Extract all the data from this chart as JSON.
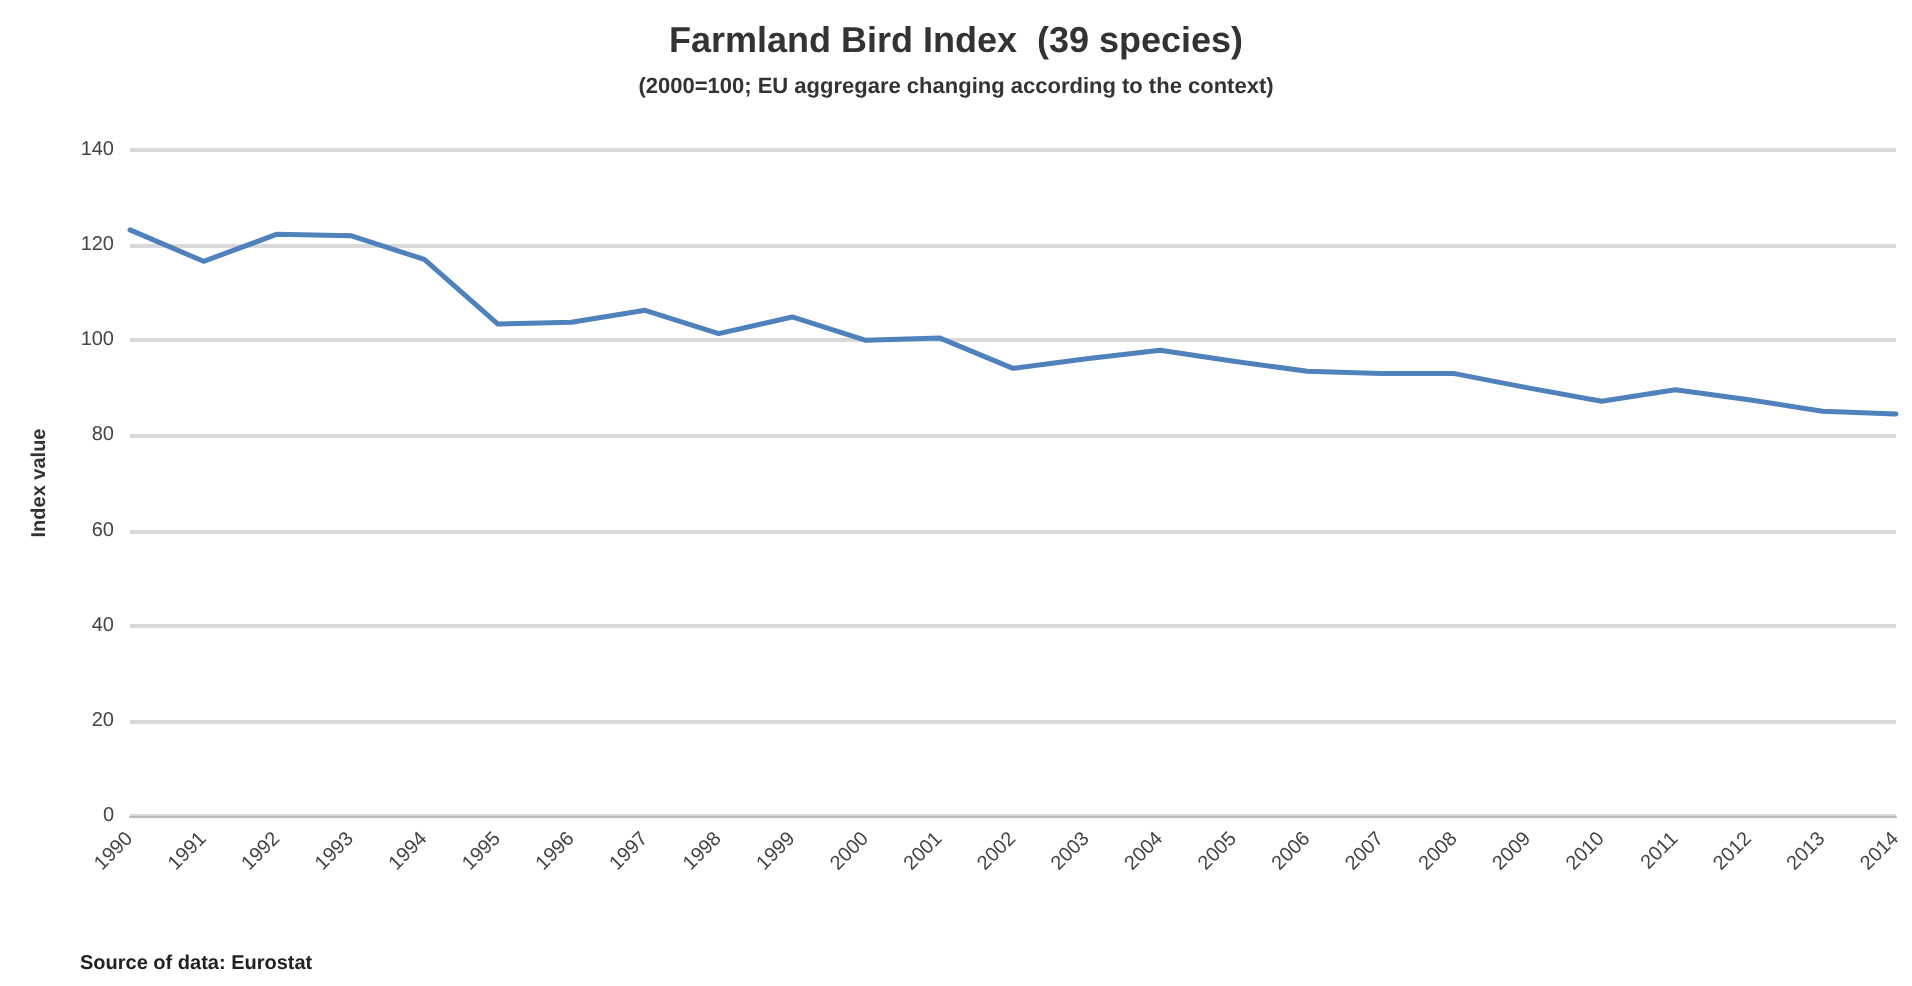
{
  "chart_data": {
    "type": "line",
    "title": "Farmland Bird Index  (39 species)",
    "subtitle": "(2000=100; EU aggregare changing according to the context)",
    "ylabel": "Index value",
    "categories": [
      "1990",
      "1991",
      "1992",
      "1993",
      "1994",
      "1995",
      "1996",
      "1997",
      "1998",
      "1999",
      "2000",
      "2001",
      "2002",
      "2003",
      "2004",
      "2005",
      "2006",
      "2007",
      "2008",
      "2009",
      "2010",
      "2011",
      "2012",
      "2013",
      "2014"
    ],
    "series": [
      {
        "color": "#4f81bd",
        "values": [
          123.2,
          116.6,
          122.3,
          122,
          117,
          103.4,
          103.8,
          106.3,
          101.4,
          104.9,
          100,
          100.5,
          94.1,
          96.1,
          97.9,
          95.6,
          93.5,
          93,
          93,
          90,
          87.2,
          89.6,
          87.5,
          85.1,
          84.5
        ]
      }
    ],
    "ylim": [
      0,
      140
    ],
    "yticks": [
      0,
      20,
      40,
      60,
      80,
      100,
      120,
      140
    ],
    "grid": "y",
    "marker": "none",
    "line_style": "solid",
    "annotations": [
      "Source of data: Eurostat"
    ]
  }
}
